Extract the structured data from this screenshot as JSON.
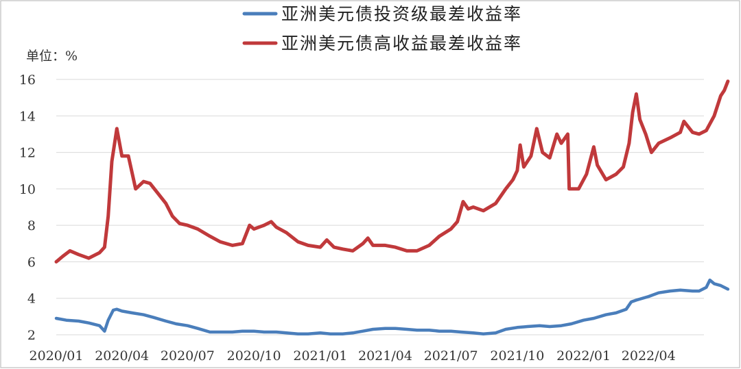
{
  "chart_data": {
    "type": "line",
    "unit_label": "单位：%",
    "ylim": [
      2,
      16
    ],
    "y_ticks": [
      2,
      4,
      6,
      8,
      10,
      12,
      14,
      16
    ],
    "x_ticks": [
      "2020/01",
      "2020/04",
      "2020/07",
      "2020/10",
      "2021/01",
      "2021/04",
      "2021/07",
      "2021/10",
      "2022/01",
      "2022/04"
    ],
    "grid": true,
    "legend_position": "top",
    "series": [
      {
        "name": "亚洲美元债投资级最差收益率",
        "color": "#4a7ebb",
        "points": [
          [
            "2020/01/01",
            2.9
          ],
          [
            "2020/01/15",
            2.8
          ],
          [
            "2020/02/01",
            2.75
          ],
          [
            "2020/02/15",
            2.65
          ],
          [
            "2020/03/01",
            2.5
          ],
          [
            "2020/03/08",
            2.2
          ],
          [
            "2020/03/13",
            2.8
          ],
          [
            "2020/03/20",
            3.35
          ],
          [
            "2020/03/25",
            3.4
          ],
          [
            "2020/04/01",
            3.3
          ],
          [
            "2020/04/15",
            3.2
          ],
          [
            "2020/05/01",
            3.1
          ],
          [
            "2020/05/15",
            2.95
          ],
          [
            "2020/06/01",
            2.75
          ],
          [
            "2020/06/15",
            2.6
          ],
          [
            "2020/07/01",
            2.5
          ],
          [
            "2020/07/15",
            2.35
          ],
          [
            "2020/08/01",
            2.15
          ],
          [
            "2020/08/15",
            2.15
          ],
          [
            "2020/09/01",
            2.15
          ],
          [
            "2020/09/15",
            2.2
          ],
          [
            "2020/10/01",
            2.2
          ],
          [
            "2020/10/15",
            2.15
          ],
          [
            "2020/11/01",
            2.15
          ],
          [
            "2020/11/15",
            2.1
          ],
          [
            "2020/12/01",
            2.05
          ],
          [
            "2020/12/15",
            2.05
          ],
          [
            "2021/01/01",
            2.1
          ],
          [
            "2021/01/15",
            2.05
          ],
          [
            "2021/02/01",
            2.05
          ],
          [
            "2021/02/15",
            2.1
          ],
          [
            "2021/03/01",
            2.2
          ],
          [
            "2021/03/15",
            2.3
          ],
          [
            "2021/04/01",
            2.35
          ],
          [
            "2021/04/15",
            2.35
          ],
          [
            "2021/05/01",
            2.3
          ],
          [
            "2021/05/15",
            2.25
          ],
          [
            "2021/06/01",
            2.25
          ],
          [
            "2021/06/15",
            2.2
          ],
          [
            "2021/07/01",
            2.2
          ],
          [
            "2021/07/15",
            2.15
          ],
          [
            "2021/08/01",
            2.1
          ],
          [
            "2021/08/15",
            2.05
          ],
          [
            "2021/09/01",
            2.1
          ],
          [
            "2021/09/15",
            2.3
          ],
          [
            "2021/10/01",
            2.4
          ],
          [
            "2021/10/15",
            2.45
          ],
          [
            "2021/11/01",
            2.5
          ],
          [
            "2021/11/15",
            2.45
          ],
          [
            "2021/12/01",
            2.5
          ],
          [
            "2021/12/15",
            2.6
          ],
          [
            "2022/01/01",
            2.8
          ],
          [
            "2022/01/15",
            2.9
          ],
          [
            "2022/02/01",
            3.1
          ],
          [
            "2022/02/15",
            3.2
          ],
          [
            "2022/03/01",
            3.4
          ],
          [
            "2022/03/08",
            3.8
          ],
          [
            "2022/03/15",
            3.9
          ],
          [
            "2022/04/01",
            4.1
          ],
          [
            "2022/04/15",
            4.3
          ],
          [
            "2022/05/01",
            4.4
          ],
          [
            "2022/05/15",
            4.45
          ],
          [
            "2022/06/01",
            4.4
          ],
          [
            "2022/06/10",
            4.4
          ],
          [
            "2022/06/20",
            4.6
          ],
          [
            "2022/06/25",
            5.0
          ],
          [
            "2022/07/01",
            4.8
          ],
          [
            "2022/07/10",
            4.7
          ],
          [
            "2022/07/20",
            4.5
          ]
        ]
      },
      {
        "name": "亚洲美元债高收益最差收益率",
        "color": "#c0393b",
        "points": [
          [
            "2020/01/01",
            6.0
          ],
          [
            "2020/01/10",
            6.3
          ],
          [
            "2020/01/20",
            6.6
          ],
          [
            "2020/02/01",
            6.4
          ],
          [
            "2020/02/15",
            6.2
          ],
          [
            "2020/03/01",
            6.5
          ],
          [
            "2020/03/08",
            6.8
          ],
          [
            "2020/03/13",
            8.5
          ],
          [
            "2020/03/18",
            11.5
          ],
          [
            "2020/03/25",
            13.3
          ],
          [
            "2020/04/01",
            11.8
          ],
          [
            "2020/04/10",
            11.8
          ],
          [
            "2020/04/20",
            10.0
          ],
          [
            "2020/05/01",
            10.4
          ],
          [
            "2020/05/10",
            10.3
          ],
          [
            "2020/05/20",
            9.8
          ],
          [
            "2020/06/01",
            9.2
          ],
          [
            "2020/06/10",
            8.5
          ],
          [
            "2020/06/20",
            8.1
          ],
          [
            "2020/07/01",
            8.0
          ],
          [
            "2020/07/15",
            7.8
          ],
          [
            "2020/08/01",
            7.4
          ],
          [
            "2020/08/15",
            7.1
          ],
          [
            "2020/09/01",
            6.9
          ],
          [
            "2020/09/15",
            7.0
          ],
          [
            "2020/09/25",
            8.0
          ],
          [
            "2020/10/01",
            7.8
          ],
          [
            "2020/10/15",
            8.0
          ],
          [
            "2020/10/25",
            8.2
          ],
          [
            "2020/11/01",
            7.9
          ],
          [
            "2020/11/15",
            7.6
          ],
          [
            "2020/12/01",
            7.1
          ],
          [
            "2020/12/15",
            6.9
          ],
          [
            "2021/01/01",
            6.8
          ],
          [
            "2021/01/10",
            7.2
          ],
          [
            "2021/01/20",
            6.8
          ],
          [
            "2021/02/01",
            6.7
          ],
          [
            "2021/02/15",
            6.6
          ],
          [
            "2021/03/01",
            7.0
          ],
          [
            "2021/03/08",
            7.3
          ],
          [
            "2021/03/15",
            6.9
          ],
          [
            "2021/04/01",
            6.9
          ],
          [
            "2021/04/15",
            6.8
          ],
          [
            "2021/05/01",
            6.6
          ],
          [
            "2021/05/15",
            6.6
          ],
          [
            "2021/06/01",
            6.9
          ],
          [
            "2021/06/15",
            7.4
          ],
          [
            "2021/07/01",
            7.8
          ],
          [
            "2021/07/10",
            8.2
          ],
          [
            "2021/07/18",
            9.3
          ],
          [
            "2021/07/25",
            8.9
          ],
          [
            "2021/08/01",
            9.0
          ],
          [
            "2021/08/15",
            8.8
          ],
          [
            "2021/09/01",
            9.2
          ],
          [
            "2021/09/15",
            10.0
          ],
          [
            "2021/09/25",
            10.5
          ],
          [
            "2021/10/01",
            11.0
          ],
          [
            "2021/10/05",
            12.4
          ],
          [
            "2021/10/10",
            11.2
          ],
          [
            "2021/10/20",
            11.8
          ],
          [
            "2021/10/28",
            13.3
          ],
          [
            "2021/11/05",
            12.0
          ],
          [
            "2021/11/15",
            11.7
          ],
          [
            "2021/11/25",
            13.0
          ],
          [
            "2021/12/01",
            12.5
          ],
          [
            "2021/12/10",
            13.0
          ],
          [
            "2021/12/12",
            10.0
          ],
          [
            "2021/12/25",
            10.0
          ],
          [
            "2022/01/05",
            10.8
          ],
          [
            "2022/01/15",
            12.3
          ],
          [
            "2022/01/20",
            11.3
          ],
          [
            "2022/02/01",
            10.5
          ],
          [
            "2022/02/15",
            10.8
          ],
          [
            "2022/02/25",
            11.2
          ],
          [
            "2022/03/05",
            12.5
          ],
          [
            "2022/03/10",
            14.2
          ],
          [
            "2022/03/15",
            15.2
          ],
          [
            "2022/03/20",
            13.8
          ],
          [
            "2022/03/28",
            13.0
          ],
          [
            "2022/04/05",
            12.0
          ],
          [
            "2022/04/15",
            12.5
          ],
          [
            "2022/05/01",
            12.8
          ],
          [
            "2022/05/15",
            13.1
          ],
          [
            "2022/05/20",
            13.7
          ],
          [
            "2022/06/01",
            13.1
          ],
          [
            "2022/06/10",
            13.0
          ],
          [
            "2022/06/20",
            13.2
          ],
          [
            "2022/07/01",
            14.0
          ],
          [
            "2022/07/10",
            15.1
          ],
          [
            "2022/07/15",
            15.4
          ],
          [
            "2022/07/20",
            15.9
          ]
        ]
      }
    ]
  }
}
